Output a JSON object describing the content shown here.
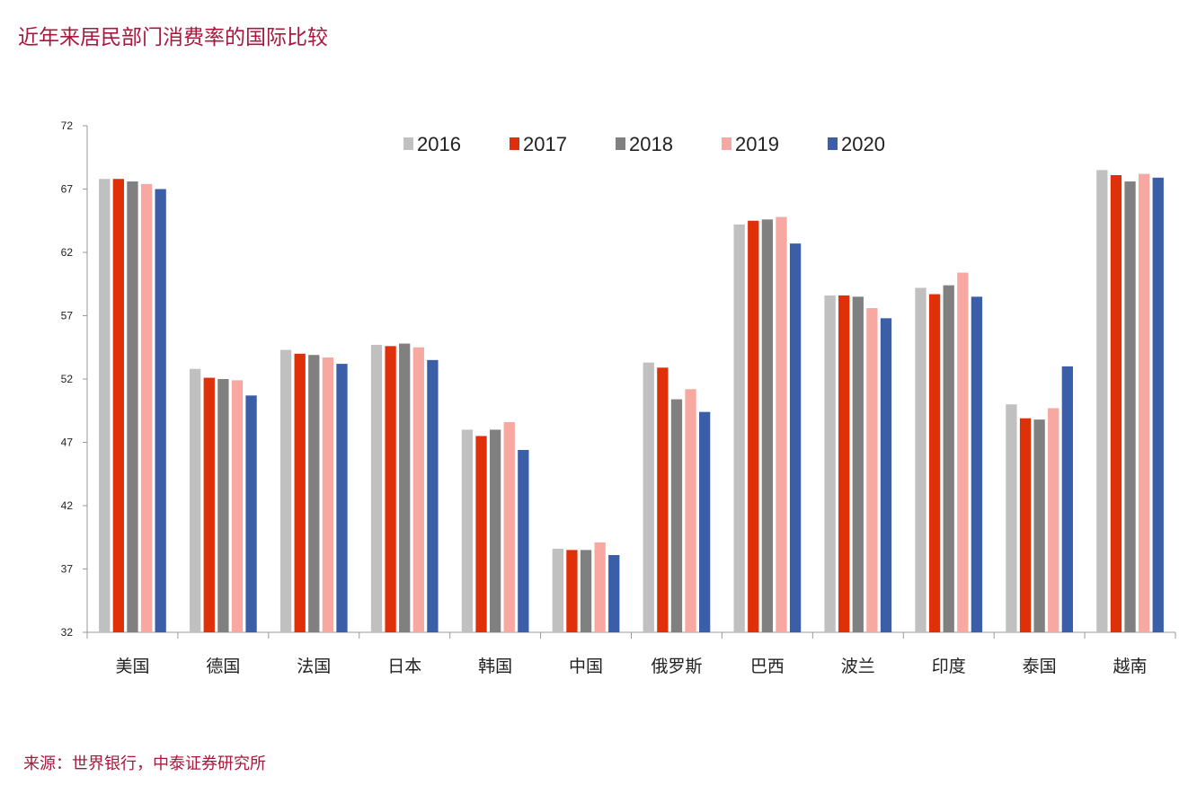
{
  "title": "近年来居民部门消费率的国际比较",
  "source": "来源：世界银行，中泰证券研究所",
  "chart_data": {
    "type": "bar",
    "ylim": [
      32,
      72
    ],
    "yticks": [
      32,
      37,
      42,
      47,
      52,
      57,
      62,
      67,
      72
    ],
    "grid": false,
    "legend_position": "top-center",
    "categories": [
      "美国",
      "德国",
      "法国",
      "日本",
      "韩国",
      "中国",
      "俄罗斯",
      "巴西",
      "波兰",
      "印度",
      "泰国",
      "越南"
    ],
    "series": [
      {
        "name": "2016",
        "color": "#c0c0c0",
        "values": [
          67.8,
          52.8,
          54.3,
          54.7,
          48.0,
          38.6,
          53.3,
          64.2,
          58.6,
          59.2,
          50.0,
          68.5
        ]
      },
      {
        "name": "2017",
        "color": "#e0300a",
        "values": [
          67.8,
          52.1,
          54.0,
          54.6,
          47.5,
          38.5,
          52.9,
          64.5,
          58.6,
          58.7,
          48.9,
          68.1
        ]
      },
      {
        "name": "2018",
        "color": "#808080",
        "values": [
          67.6,
          52.0,
          53.9,
          54.8,
          48.0,
          38.5,
          50.4,
          64.6,
          58.5,
          59.4,
          48.8,
          67.6
        ]
      },
      {
        "name": "2019",
        "color": "#f7a8a0",
        "values": [
          67.4,
          51.9,
          53.7,
          54.5,
          48.6,
          39.1,
          51.2,
          64.8,
          57.6,
          60.4,
          49.7,
          68.2
        ]
      },
      {
        "name": "2020",
        "color": "#3a5ea8",
        "values": [
          67.0,
          50.7,
          53.2,
          53.5,
          46.4,
          38.1,
          49.4,
          62.7,
          56.8,
          58.5,
          53.0,
          67.9
        ]
      }
    ]
  }
}
